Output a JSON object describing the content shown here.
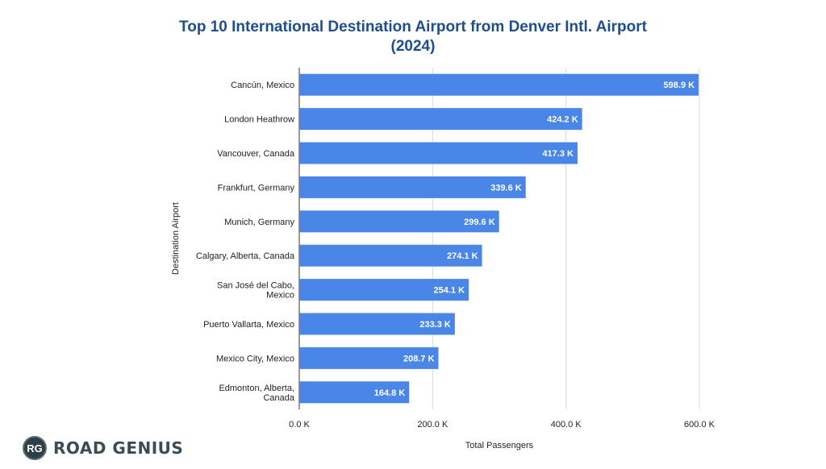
{
  "chart_data": {
    "type": "bar",
    "orientation": "horizontal",
    "title_line1": "Top 10 International Destination Airport from Denver Intl. Airport",
    "title_line2": "(2024)",
    "xlabel": "Total Passengers",
    "ylabel": "Destination Airport",
    "xlim": [
      0,
      600000
    ],
    "x_ticks": [
      {
        "value": 0,
        "label": "0.0 K"
      },
      {
        "value": 200000,
        "label": "200.0 K"
      },
      {
        "value": 400000,
        "label": "400.0 K"
      },
      {
        "value": 600000,
        "label": "600.0 K"
      }
    ],
    "grid": true,
    "bar_color": "#4a86e8",
    "categories": [
      [
        "Cancún, Mexico"
      ],
      [
        "London Heathrow"
      ],
      [
        "Vancouver, Canada"
      ],
      [
        "Frankfurt, Germany"
      ],
      [
        "Munich, Germany"
      ],
      [
        "Calgary, Alberta, Canada"
      ],
      [
        "San José del Cabo,",
        "Mexico"
      ],
      [
        "Puerto Vallarta, Mexico"
      ],
      [
        "Mexico City, Mexico"
      ],
      [
        "Edmonton, Alberta,",
        "Canada"
      ]
    ],
    "values": [
      598900,
      424200,
      417300,
      339600,
      299600,
      274100,
      254100,
      233300,
      208700,
      164800
    ],
    "value_labels": [
      "598.9 K",
      "424.2 K",
      "417.3 K",
      "339.6 K",
      "299.6 K",
      "274.1 K",
      "254.1 K",
      "233.3 K",
      "208.7 K",
      "164.8 K"
    ]
  },
  "brand": {
    "mark": "RG",
    "name": "ROAD GENIUS"
  }
}
